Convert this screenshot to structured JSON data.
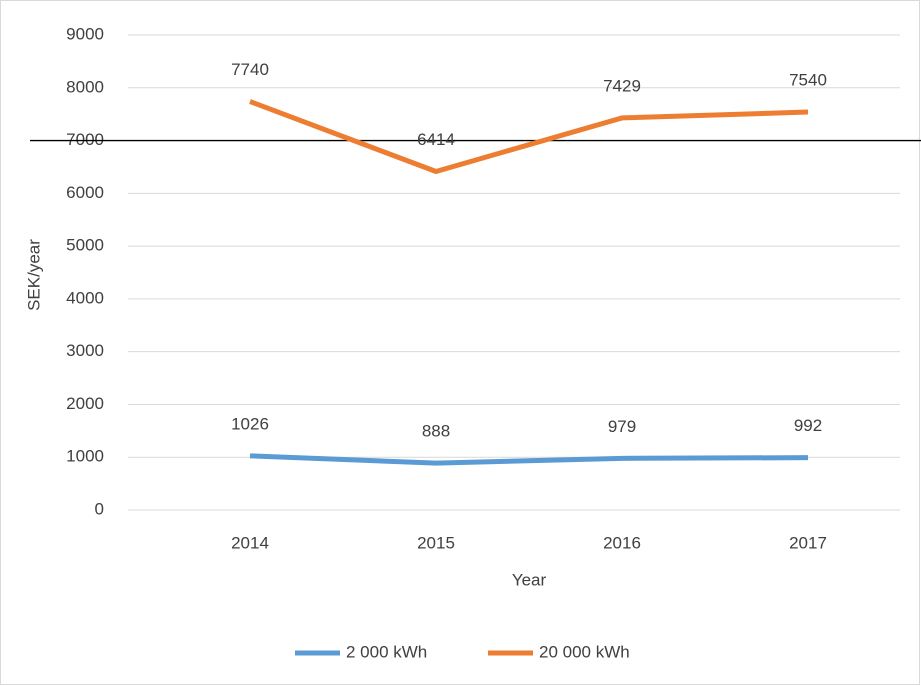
{
  "chart_data": {
    "type": "line",
    "x_label": "Year",
    "y_label": "SEK/year",
    "categories": [
      "2014",
      "2015",
      "2016",
      "2017"
    ],
    "series": [
      {
        "name": "2 000 kWh",
        "color": "#5b9bd5",
        "values": [
          1026,
          888,
          979,
          992
        ]
      },
      {
        "name": "20 000 kWh",
        "color": "#ed7d31",
        "values": [
          7740,
          6414,
          7429,
          7540
        ]
      }
    ],
    "ylim": [
      0,
      9000
    ],
    "yticks": [
      0,
      1000,
      2000,
      3000,
      4000,
      5000,
      6000,
      7000,
      8000,
      9000
    ],
    "grid": true,
    "reference_line": 7000,
    "legend": "bottom"
  }
}
